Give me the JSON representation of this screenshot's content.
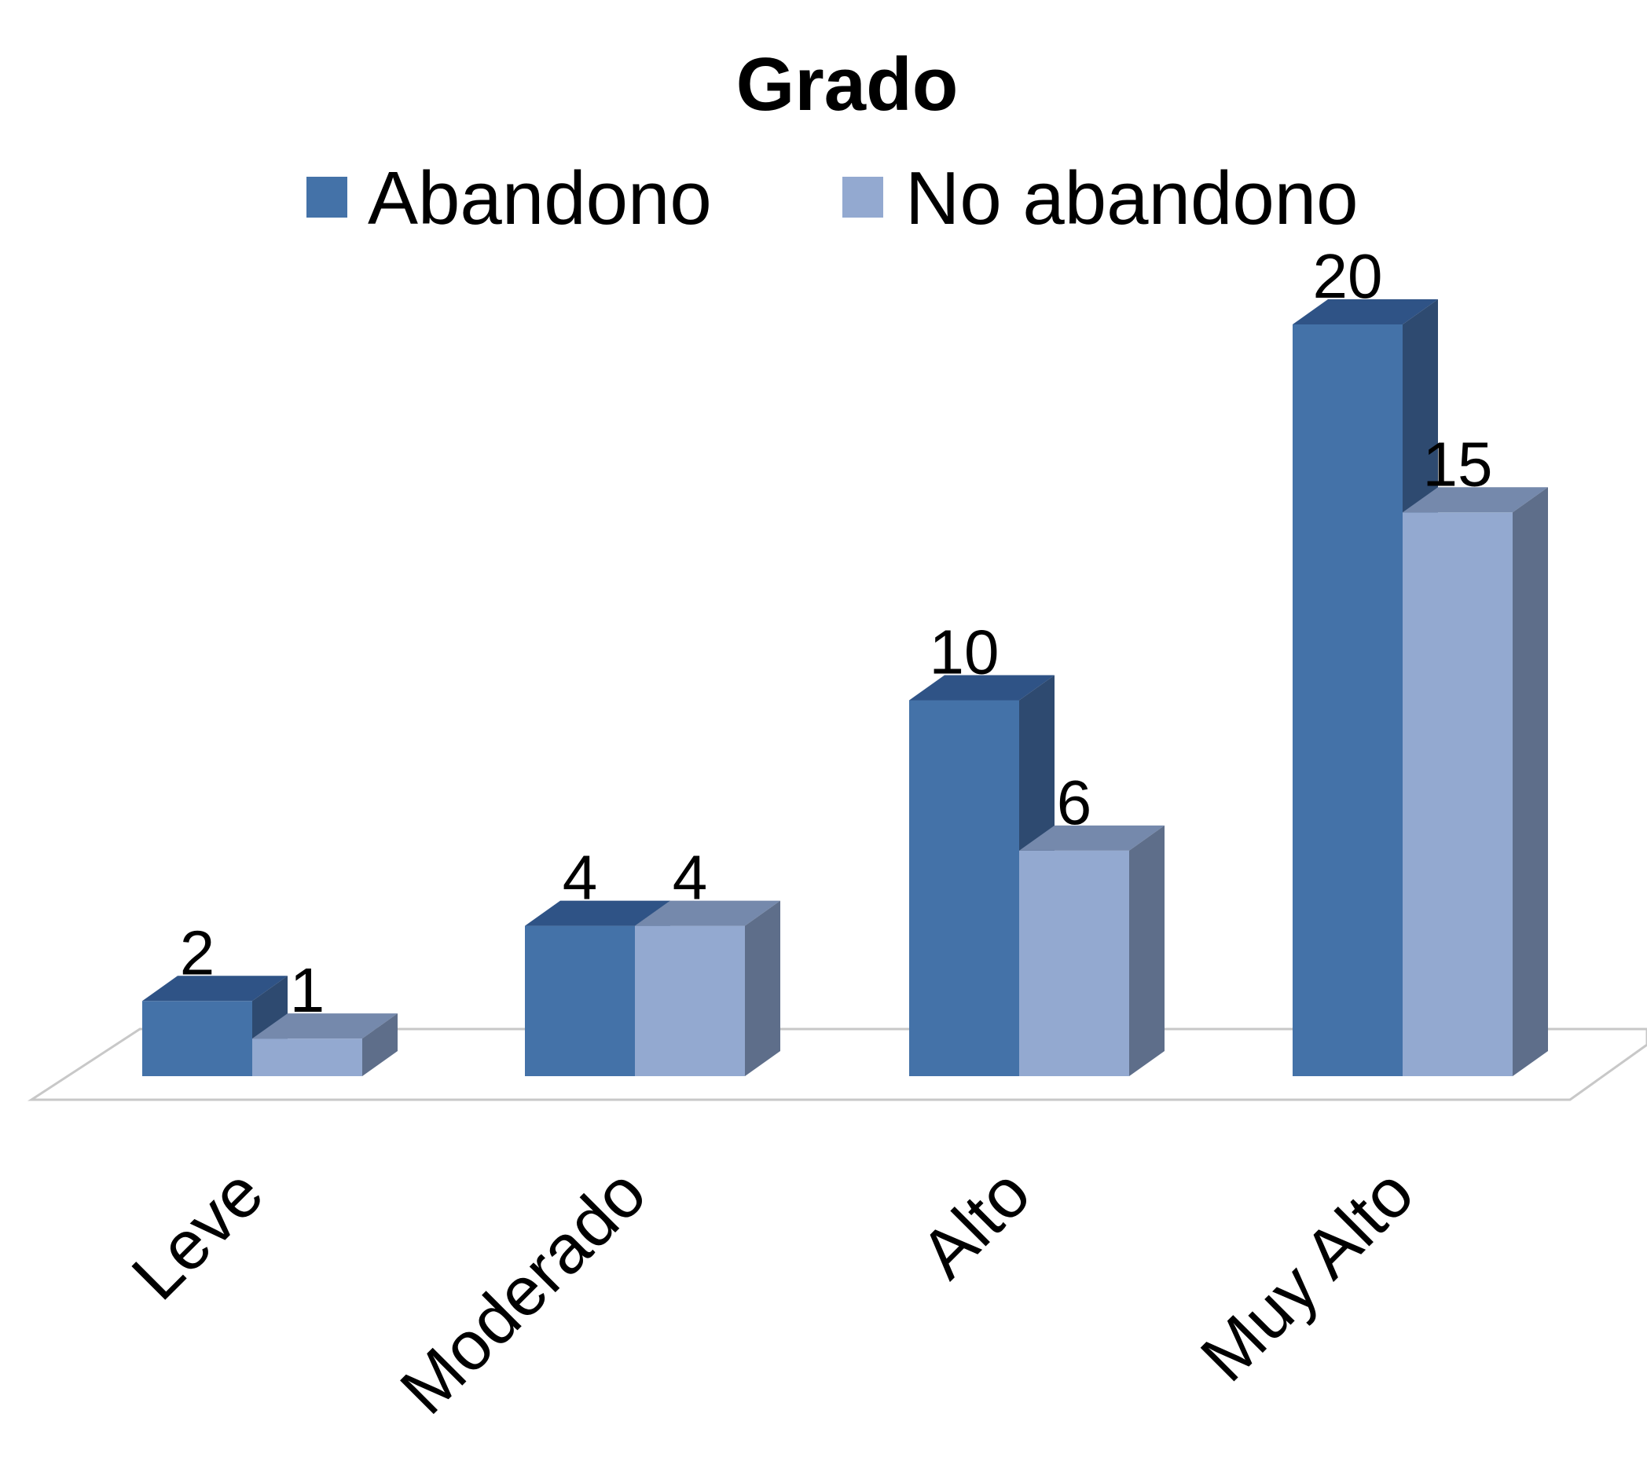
{
  "chart_data": {
    "type": "bar",
    "style": "3d-clustered-column",
    "title": "Grado",
    "xlabel": "",
    "ylabel": "",
    "categories": [
      "Leve",
      "Moderado",
      "Alto",
      "Muy Alto"
    ],
    "series": [
      {
        "name": "Abandono",
        "values": [
          2,
          4,
          10,
          20
        ],
        "color": "#4472A8",
        "top_color": "#2F5386",
        "side_color": "#2E4A70"
      },
      {
        "name": "No abandono",
        "values": [
          1,
          4,
          6,
          15
        ],
        "color": "#93A9D0",
        "top_color": "#7589AC",
        "side_color": "#5E6E8A"
      }
    ],
    "ylim": [
      0,
      20
    ],
    "grid": false,
    "legend_position": "top",
    "data_labels": true
  }
}
